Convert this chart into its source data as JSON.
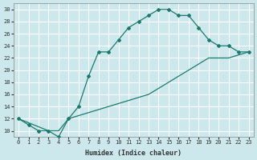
{
  "title": "",
  "xlabel": "Humidex (Indice chaleur)",
  "ylabel": "",
  "xlim": [
    -0.5,
    23.5
  ],
  "ylim": [
    9,
    31
  ],
  "yticks": [
    10,
    12,
    14,
    16,
    18,
    20,
    22,
    24,
    26,
    28,
    30
  ],
  "xticks": [
    0,
    1,
    2,
    3,
    4,
    5,
    6,
    7,
    8,
    9,
    10,
    11,
    12,
    13,
    14,
    15,
    16,
    17,
    18,
    19,
    20,
    21,
    22,
    23
  ],
  "background_color": "#cce8ec",
  "grid_color": "#ffffff",
  "line_color": "#1a7a6e",
  "curve1_x": [
    0,
    1,
    2,
    3,
    4,
    5,
    6,
    7,
    8,
    9,
    10,
    11,
    12,
    13,
    14,
    15,
    16,
    17,
    18,
    19,
    20,
    21,
    22,
    23
  ],
  "curve1_y": [
    12,
    11,
    10,
    10,
    9,
    12,
    14,
    19,
    23,
    23,
    25,
    27,
    28,
    29,
    30,
    30,
    29,
    29,
    27,
    25,
    24,
    24,
    23,
    23
  ],
  "curve2_x": [
    0,
    3,
    4,
    5,
    7,
    9,
    11,
    13,
    15,
    17,
    19,
    21,
    23
  ],
  "curve2_y": [
    12,
    10,
    10,
    12,
    13,
    14,
    15,
    16,
    18,
    20,
    22,
    22,
    23
  ],
  "font_family": "monospace"
}
